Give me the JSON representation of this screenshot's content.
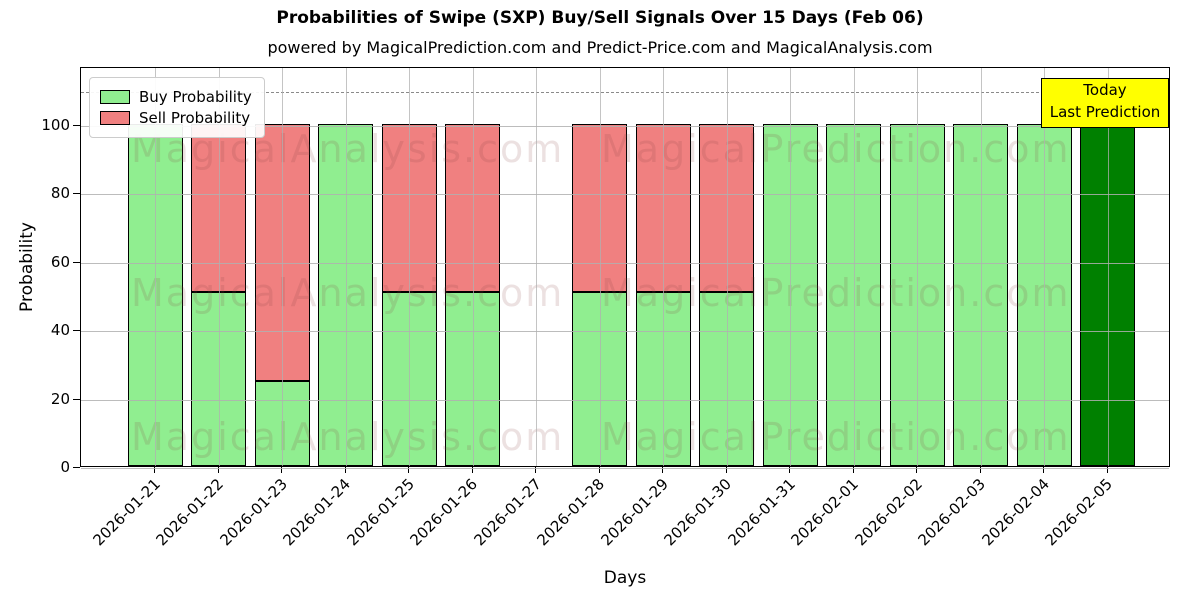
{
  "title": "Probabilities of Swipe (SXP) Buy/Sell Signals Over 15 Days (Feb 06)",
  "subtitle": "powered by MagicalPrediction.com and Predict-Price.com and MagicalAnalysis.com",
  "legend": {
    "buy_label": "Buy Probability",
    "sell_label": "Sell Probability"
  },
  "annotation": {
    "line1": "Today",
    "line2": "Last Prediction"
  },
  "watermarks": {
    "left_text": "MagicalAnalysis.com",
    "right_text": "MagicalPrediction.com"
  },
  "colors": {
    "buy": "#90EE90",
    "sell": "#F08080",
    "today_bar": "#008000",
    "annotation_bg": "#FFFF00",
    "grid": "#b0b0b0",
    "dashed_line": "#8a8a8a"
  },
  "chart_data": {
    "type": "bar",
    "stacked": true,
    "title": "Probabilities of Swipe (SXP) Buy/Sell Signals Over 15 Days (Feb 06)",
    "xlabel": "Days",
    "ylabel": "Probability",
    "categories": [
      "2026-01-21",
      "2026-01-22",
      "2026-01-23",
      "2026-01-24",
      "2026-01-25",
      "2026-01-26",
      "2026-01-27",
      "2026-01-28",
      "2026-01-29",
      "2026-01-30",
      "2026-01-31",
      "2026-02-01",
      "2026-02-02",
      "2026-02-03",
      "2026-02-04",
      "2026-02-05"
    ],
    "series": [
      {
        "name": "Buy Probability",
        "color": "#90EE90",
        "values": [
          100,
          51,
          25,
          100,
          51,
          51,
          0,
          51,
          51,
          51,
          100,
          100,
          100,
          100,
          100,
          100
        ]
      },
      {
        "name": "Sell Probability",
        "color": "#F08080",
        "values": [
          0,
          49,
          75,
          0,
          49,
          49,
          0,
          49,
          49,
          49,
          0,
          0,
          0,
          0,
          0,
          0
        ]
      }
    ],
    "today_index": 15,
    "yticks": [
      0,
      20,
      40,
      60,
      80,
      100
    ],
    "ylim": [
      0,
      117
    ],
    "dashed_line_y": 110,
    "grid": true,
    "legend_position": "upper left"
  }
}
